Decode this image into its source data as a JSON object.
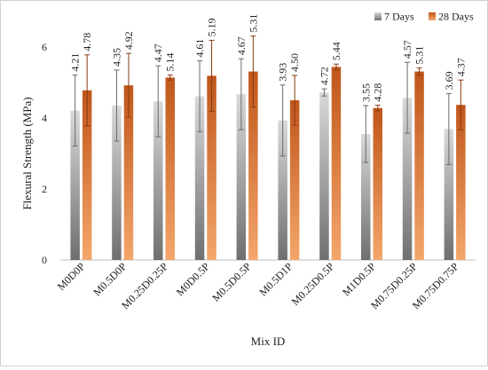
{
  "chart_data": {
    "type": "bar",
    "title": "",
    "xlabel": "Mix ID",
    "ylabel": "Flexural Strength (MPa)",
    "ylim": [
      0,
      6
    ],
    "yticks": [
      0,
      2,
      4,
      6
    ],
    "grid": false,
    "legend_position": "top-right",
    "categories": [
      "M0D0P",
      "M0.5D0P",
      "M0.25D0.25P",
      "M0D0.5P",
      "M0.5D0.5P",
      "M0.5D1P",
      "M0.25D0.5P",
      "M1D0.5P",
      "M0.75D0.25P",
      "M0.75D0.75P"
    ],
    "series": [
      {
        "name": "7 Days",
        "color": "#8a8a8a",
        "values": [
          4.21,
          4.35,
          4.47,
          4.61,
          4.67,
          3.93,
          4.72,
          3.55,
          4.57,
          3.69
        ],
        "labels": [
          "4.21",
          "4.35",
          "4.47",
          "4.61",
          "4.67",
          "3.93",
          "4.72",
          "3.55",
          "4.57",
          "3.69"
        ],
        "error": [
          1.0,
          1.0,
          1.0,
          1.0,
          1.0,
          1.0,
          0.1,
          0.8,
          1.0,
          1.0
        ]
      },
      {
        "name": "28 Days",
        "color": "#d2691e",
        "values": [
          4.78,
          4.92,
          5.14,
          5.19,
          5.31,
          4.5,
          5.44,
          4.28,
          5.31,
          4.37
        ],
        "labels": [
          "4.78",
          "4.92",
          "5.14",
          "5.19",
          "5.31",
          "4.50",
          "5.44",
          "4.28",
          "5.31",
          "4.37"
        ],
        "error": [
          1.0,
          0.9,
          0.07,
          1.0,
          1.0,
          0.7,
          0.08,
          0.08,
          0.1,
          0.7
        ]
      }
    ]
  }
}
